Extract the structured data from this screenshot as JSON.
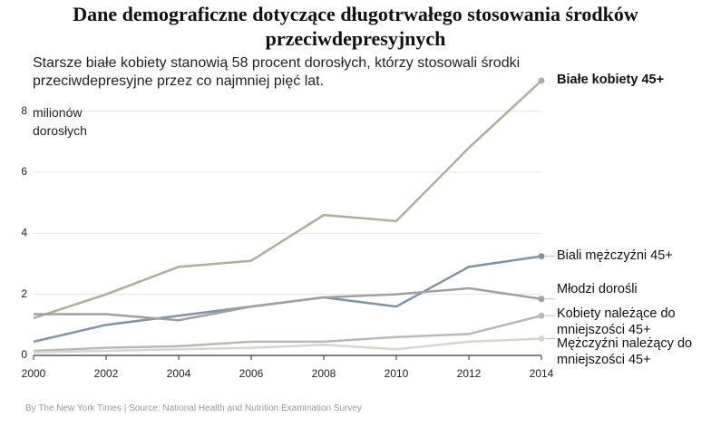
{
  "chart_data": {
    "type": "line",
    "title": "Dane demograficzne dotyczące długotrwałego stosowania środków przeciwdepresyjnych",
    "subtitle": "Starsze białe kobiety stanowią 58 procent dorosłych, którzy stosowali środki przeciwdepresyjne przez co najmniej pięć lat.",
    "y_label": "milionów dorosłych",
    "source": "By The New York Times | Source: National Health and Nutrition Examination Survey",
    "x": [
      2000,
      2002,
      2004,
      2006,
      2008,
      2010,
      2012,
      2014
    ],
    "xlim": [
      2000,
      2014
    ],
    "xticks": [
      2000,
      2002,
      2004,
      2006,
      2008,
      2010,
      2012,
      2014
    ],
    "ylim": [
      0,
      9
    ],
    "yticks": [
      0,
      2,
      4,
      6,
      8
    ],
    "grid": true,
    "series": [
      {
        "name": "Białe kobiety 45+",
        "color": "#a9b296",
        "values": [
          1.22,
          2.0,
          2.9,
          3.1,
          4.6,
          4.4,
          6.8,
          9.0
        ]
      },
      {
        "name": "Biali mężczyźni 45+",
        "color": "#7f95a6",
        "values": [
          0.45,
          1.0,
          1.3,
          1.6,
          1.9,
          1.6,
          2.9,
          3.25
        ]
      },
      {
        "name": "Młodzi dorośli",
        "color": "#a0a0a0",
        "values": [
          1.35,
          1.35,
          1.15,
          1.6,
          1.9,
          2.0,
          2.2,
          1.85
        ]
      },
      {
        "name": "Kobiety należące do mniejszości 45+",
        "color": "#b8b8b8",
        "values": [
          0.15,
          0.25,
          0.3,
          0.45,
          0.45,
          0.6,
          0.7,
          1.3
        ]
      },
      {
        "name": "Mężczyźni należący do mniejszości 45+",
        "color": "#d6d6cc",
        "values": [
          0.1,
          0.15,
          0.2,
          0.25,
          0.35,
          0.2,
          0.45,
          0.55
        ]
      }
    ]
  }
}
